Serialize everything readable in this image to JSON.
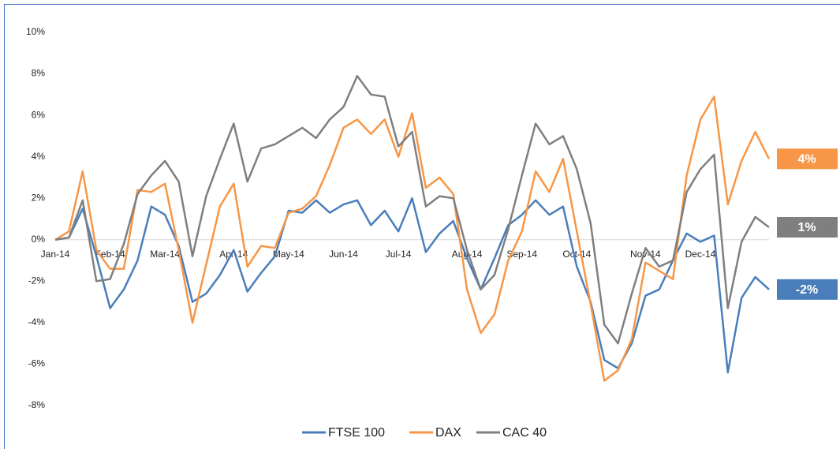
{
  "chart_data": {
    "type": "line",
    "categories": [
      "Jan-14",
      null,
      null,
      null,
      "Feb-14",
      null,
      null,
      null,
      "Mar-14",
      null,
      null,
      null,
      null,
      "Apr-14",
      null,
      null,
      null,
      "May-14",
      null,
      null,
      null,
      "Jun-14",
      null,
      null,
      null,
      "Jul-14",
      null,
      null,
      null,
      null,
      "Aug-14",
      null,
      null,
      null,
      "Sep-14",
      null,
      null,
      null,
      "Oct-14",
      null,
      null,
      null,
      null,
      "Nov-14",
      null,
      null,
      null,
      "Dec-14",
      null,
      null,
      null,
      null,
      null
    ],
    "series": [
      {
        "name": "FTSE 100",
        "color": "#4a7ebb",
        "end_label": "-2%",
        "values": [
          0,
          0.1,
          1.5,
          -0.8,
          -3.3,
          -2.4,
          -1.0,
          1.6,
          1.2,
          -0.3,
          -3.0,
          -2.6,
          -1.7,
          -0.5,
          -2.5,
          -1.6,
          -0.8,
          1.4,
          1.3,
          1.9,
          1.3,
          1.7,
          1.9,
          0.7,
          1.4,
          0.4,
          2.0,
          -0.6,
          0.3,
          0.9,
          -0.9,
          -2.4,
          -0.9,
          0.7,
          1.2,
          1.9,
          1.2,
          1.6,
          -1.3,
          -3.0,
          -5.8,
          -6.2,
          -5.0,
          -2.7,
          -2.4,
          -1.0,
          0.3,
          -0.1,
          0.2,
          -6.4,
          -2.8,
          -1.8,
          -2.4
        ]
      },
      {
        "name": "DAX",
        "color": "#f79646",
        "end_label": "4%",
        "values": [
          0,
          0.4,
          3.3,
          -0.5,
          -1.4,
          -1.4,
          2.4,
          2.3,
          2.7,
          -0.5,
          -4.0,
          -1.2,
          1.6,
          2.7,
          -1.3,
          -0.3,
          -0.4,
          1.3,
          1.5,
          2.1,
          3.6,
          5.4,
          5.8,
          5.1,
          5.8,
          4.0,
          6.1,
          2.5,
          3.0,
          2.2,
          -2.4,
          -4.5,
          -3.6,
          -1.0,
          0.4,
          3.3,
          2.3,
          3.9,
          0.4,
          -3.1,
          -6.8,
          -6.3,
          -4.8,
          -1.1,
          -1.5,
          -1.9,
          3.1,
          5.8,
          6.9,
          1.7,
          3.8,
          5.2,
          3.9
        ]
      },
      {
        "name": "CAC 40",
        "color": "#7f7f7f",
        "end_label": "1%",
        "values": [
          0,
          0.1,
          1.9,
          -2.0,
          -1.9,
          -0.2,
          2.2,
          3.1,
          3.8,
          2.8,
          -0.8,
          2.1,
          3.9,
          5.6,
          2.8,
          4.4,
          4.6,
          5.0,
          5.4,
          4.9,
          5.8,
          6.4,
          7.9,
          7.0,
          6.9,
          4.5,
          5.2,
          1.6,
          2.1,
          2.0,
          -0.5,
          -2.4,
          -1.7,
          0.5,
          3.1,
          5.6,
          4.6,
          5.0,
          3.4,
          0.8,
          -4.1,
          -5.0,
          -2.6,
          -0.4,
          -1.3,
          -1.0,
          2.3,
          3.4,
          4.1,
          -3.3,
          -0.1,
          1.1,
          0.6
        ]
      }
    ],
    "ylim": [
      -8,
      10
    ],
    "yticks": [
      {
        "value": -8,
        "label": "-8%"
      },
      {
        "value": -6,
        "label": "-6%"
      },
      {
        "value": -4,
        "label": "-4%"
      },
      {
        "value": -2,
        "label": "-2%"
      },
      {
        "value": 0,
        "label": "0%"
      },
      {
        "value": 2,
        "label": "2%"
      },
      {
        "value": 4,
        "label": "4%"
      },
      {
        "value": 6,
        "label": "6%"
      },
      {
        "value": 8,
        "label": "8%"
      },
      {
        "value": 10,
        "label": "10%"
      }
    ],
    "grid": false,
    "legend": "bottom"
  }
}
